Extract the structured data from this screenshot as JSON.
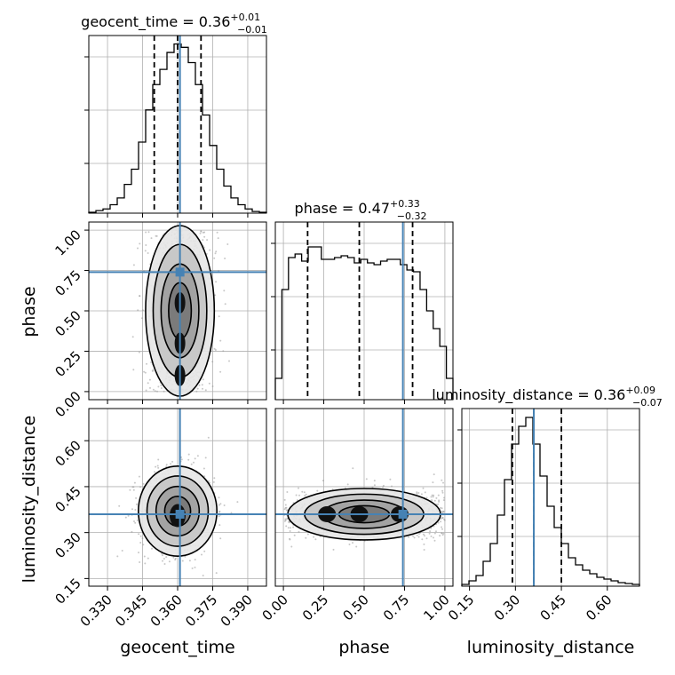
{
  "colors": {
    "truth": "#4682b4",
    "hist": "#000000",
    "grid": "#b0b0b0",
    "scatter": "#9a9a9a",
    "density": [
      "#ffffff",
      "#e6e6e6",
      "#c4c4c4",
      "#9e9e9e",
      "#777777",
      "#4c4c4c",
      "#262626"
    ]
  },
  "chart_data": {
    "type": "corner",
    "grid": true,
    "parameters": [
      {
        "name": "geocent_time",
        "xlabel": "geocent_time",
        "ylabel": "",
        "range": [
          0.322,
          0.398
        ],
        "ticks": [
          0.33,
          0.345,
          0.36,
          0.375,
          0.39
        ],
        "tick_labels": [
          "0.330",
          "0.345",
          "0.360",
          "0.375",
          "0.390"
        ],
        "truth": 0.361,
        "quantiles": [
          0.35,
          0.36,
          0.37
        ],
        "title": {
          "label": "geocent_time = 0.36",
          "plus": "+0.01",
          "minus": "−0.01"
        },
        "hist_bins": [
          0.5,
          1.5,
          2.5,
          5,
          9,
          17,
          26,
          42,
          61,
          76,
          85,
          95,
          100,
          98,
          89,
          76,
          58,
          40,
          26,
          16,
          9,
          5,
          2.5,
          1.0,
          0.5
        ],
        "hist_ylim": [
          0,
          105
        ]
      },
      {
        "name": "phase",
        "xlabel": "phase",
        "ylabel": "phase",
        "range": [
          -0.05,
          1.05
        ],
        "ticks": [
          0.0,
          0.25,
          0.5,
          0.75,
          1.0
        ],
        "tick_labels": [
          "0.00",
          "0.25",
          "0.50",
          "0.75",
          "1.00"
        ],
        "truth": 0.74,
        "quantiles": [
          0.15,
          0.47,
          0.8
        ],
        "title": {
          "label": "phase = 0.47",
          "plus": "+0.33",
          "minus": "−0.32"
        },
        "hist_bins": [
          12,
          62,
          80,
          82,
          78,
          86,
          86,
          79,
          79,
          80,
          81,
          80,
          77,
          79,
          77,
          76,
          78,
          79,
          79,
          76,
          73,
          72,
          62,
          50,
          40,
          30,
          12
        ],
        "hist_ylim": [
          0,
          100
        ]
      },
      {
        "name": "luminosity_distance",
        "xlabel": "luminosity_distance",
        "ylabel": "luminosity_distance",
        "range": [
          0.125,
          0.705
        ],
        "ticks": [
          0.15,
          0.3,
          0.45,
          0.6
        ],
        "tick_labels": [
          "0.15",
          "0.30",
          "0.45",
          "0.60"
        ],
        "truth": 0.36,
        "quantiles": [
          0.29,
          0.36,
          0.45
        ],
        "title": {
          "label": "luminosity_distance = 0.36",
          "plus": "+0.09",
          "minus": "−0.07"
        },
        "hist_bins": [
          1,
          3,
          6,
          14,
          24,
          40,
          60,
          80,
          90,
          95,
          80,
          62,
          45,
          33,
          24,
          16,
          12,
          9,
          7,
          5,
          4,
          3,
          2,
          1.5,
          1
        ],
        "hist_ylim": [
          0,
          100
        ]
      }
    ]
  }
}
